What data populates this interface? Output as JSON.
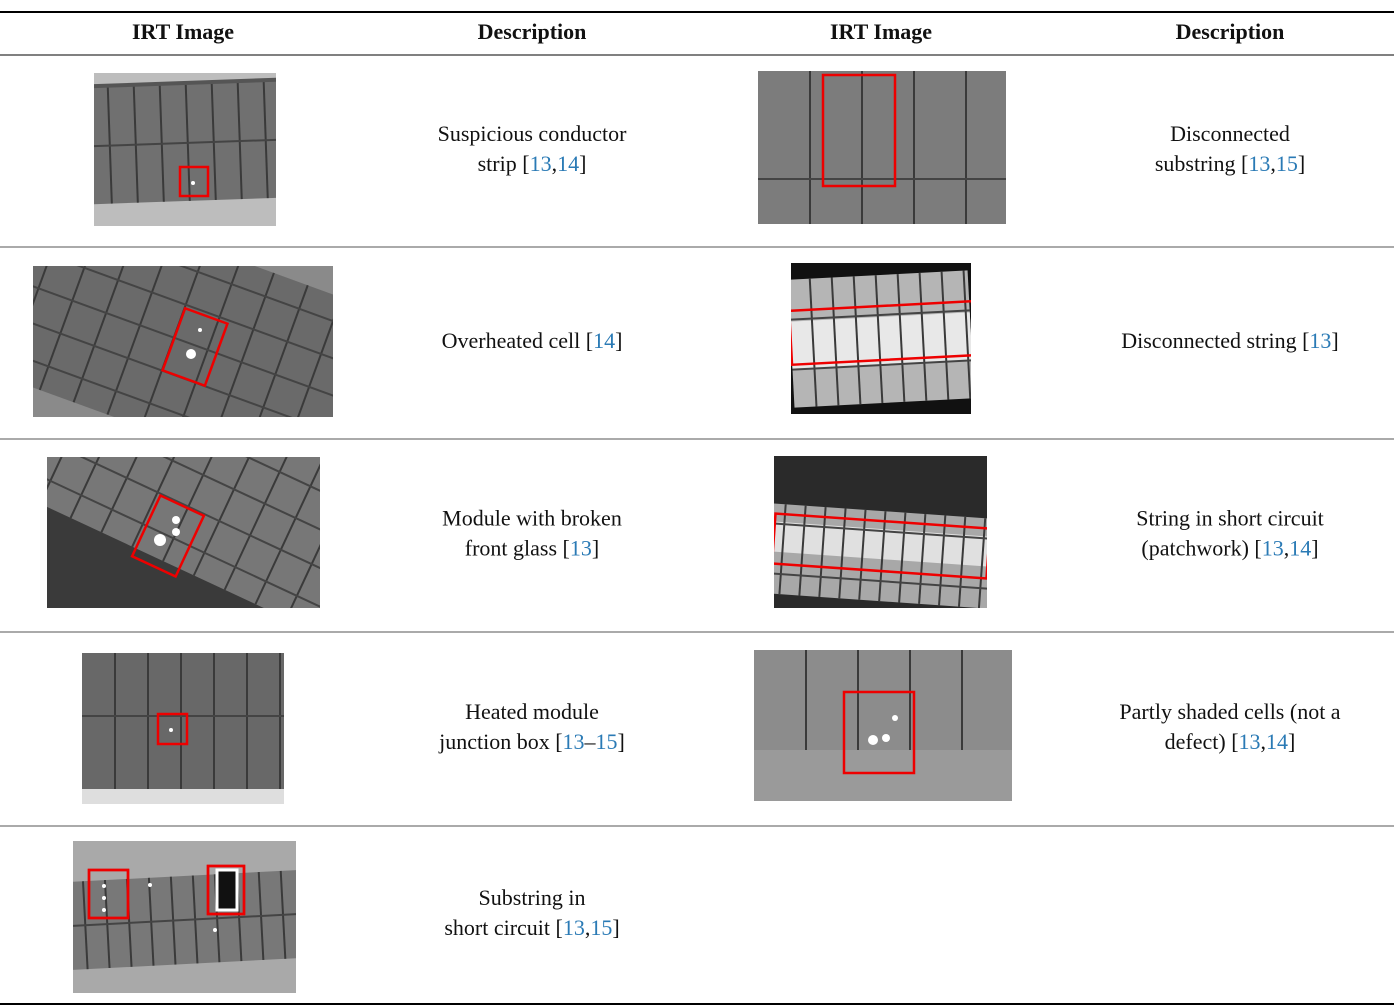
{
  "table": {
    "header": [
      "IRT Image",
      "Description",
      "IRT Image",
      "Description"
    ],
    "rows": [
      [
        {
          "description": [
            [
              "Suspicious conductor"
            ],
            [
              "strip [",
              {
                "ref": "13"
              },
              ",",
              {
                "ref": "14"
              },
              "]"
            ]
          ]
        },
        {
          "description": [
            [
              "Disconnected"
            ],
            [
              "substring [",
              {
                "ref": "13"
              },
              ",",
              {
                "ref": "15"
              },
              "]"
            ]
          ]
        }
      ],
      [
        {
          "description": [
            [
              "Overheated cell [",
              {
                "ref": "14"
              },
              "]"
            ]
          ]
        },
        {
          "description": [
            [
              "Disconnected string [",
              {
                "ref": "13"
              },
              "]"
            ]
          ]
        }
      ],
      [
        {
          "description": [
            [
              "Module with broken"
            ],
            [
              "front glass [",
              {
                "ref": "13"
              },
              "]"
            ]
          ]
        },
        {
          "description": [
            [
              "String in short circuit"
            ],
            [
              "(patchwork) [",
              {
                "ref": "13"
              },
              ",",
              {
                "ref": "14"
              },
              "]"
            ]
          ]
        }
      ],
      [
        {
          "description": [
            [
              "Heated module"
            ],
            [
              "junction box [",
              {
                "ref": "13"
              },
              "–",
              {
                "ref": "15"
              },
              "]"
            ]
          ]
        },
        {
          "description": [
            [
              "Partly shaded cells (not a"
            ],
            [
              "defect) [",
              {
                "ref": "13"
              },
              ",",
              {
                "ref": "14"
              },
              "]"
            ]
          ]
        }
      ],
      [
        {
          "description": [
            [
              "Substring in"
            ],
            [
              "short circuit [",
              {
                "ref": "13"
              },
              ",",
              {
                "ref": "15"
              },
              "]"
            ]
          ]
        }
      ]
    ]
  }
}
